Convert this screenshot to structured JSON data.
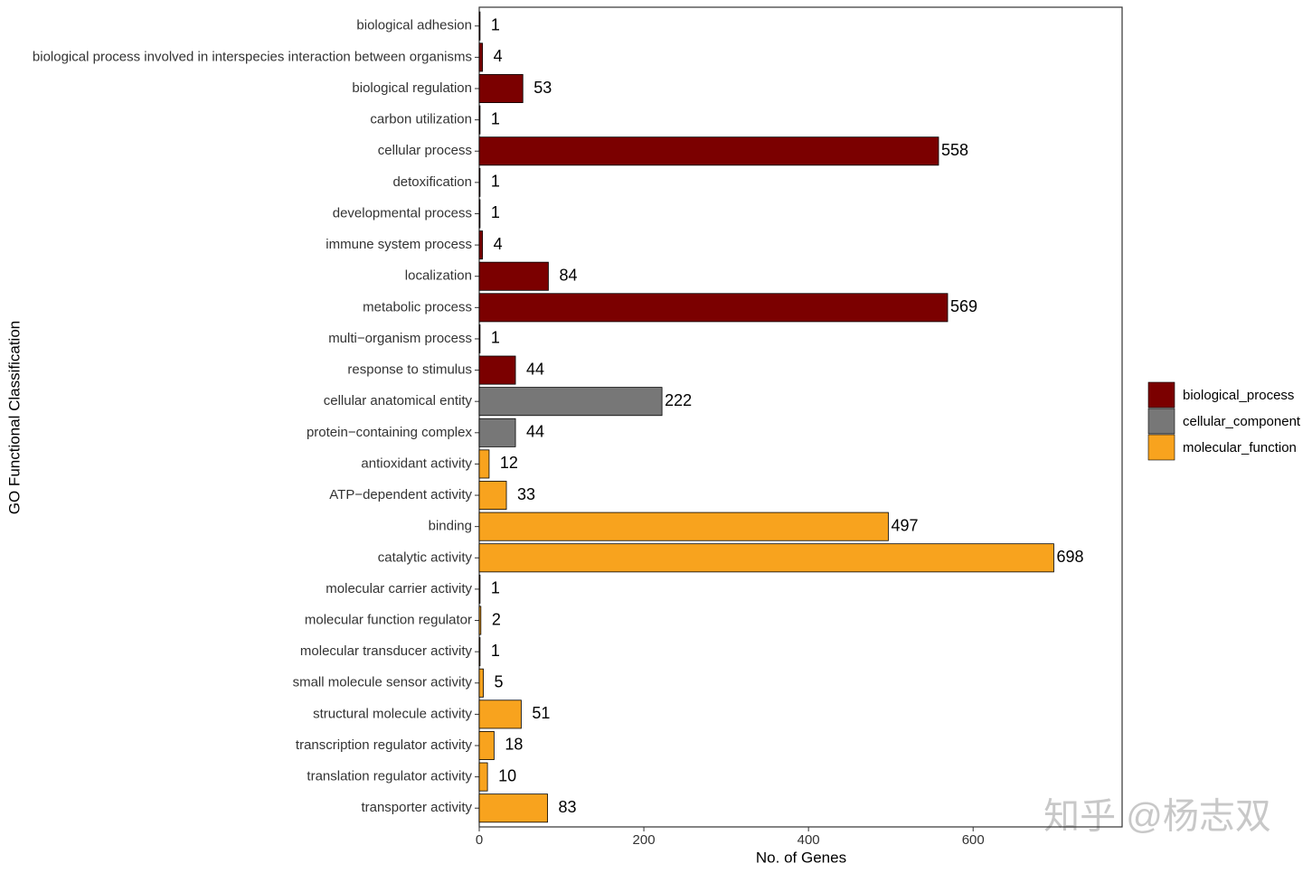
{
  "chart_data": {
    "type": "bar",
    "orientation": "horizontal",
    "x_label": "No. of Genes",
    "y_label": "GO Functional Classification",
    "categories": [
      "biological adhesion",
      "biological process involved in interspecies interaction between organisms",
      "biological regulation",
      "carbon utilization",
      "cellular process",
      "detoxification",
      "developmental process",
      "immune system process",
      "localization",
      "metabolic process",
      "multi−organism process",
      "response to stimulus",
      "cellular anatomical entity",
      "protein−containing complex",
      "antioxidant activity",
      "ATP−dependent activity",
      "binding",
      "catalytic activity",
      "molecular carrier activity",
      "molecular function regulator",
      "molecular transducer activity",
      "small molecule sensor activity",
      "structural molecule activity",
      "transcription regulator activity",
      "translation regulator activity",
      "transporter activity"
    ],
    "series": [
      {
        "name": "biological_process",
        "color": "#7b0000",
        "values": [
          1,
          4,
          53,
          1,
          558,
          1,
          1,
          4,
          84,
          569,
          1,
          44,
          null,
          null,
          null,
          null,
          null,
          null,
          null,
          null,
          null,
          null,
          null,
          null,
          null,
          null
        ]
      },
      {
        "name": "cellular_component",
        "color": "#777777",
        "values": [
          null,
          null,
          null,
          null,
          null,
          null,
          null,
          null,
          null,
          null,
          null,
          null,
          222,
          44,
          null,
          null,
          null,
          null,
          null,
          null,
          null,
          null,
          null,
          null,
          null,
          null
        ]
      },
      {
        "name": "molecular_function",
        "color": "#f8a31e",
        "values": [
          null,
          null,
          null,
          null,
          null,
          null,
          null,
          null,
          null,
          null,
          null,
          null,
          null,
          null,
          12,
          33,
          497,
          698,
          1,
          2,
          1,
          5,
          51,
          18,
          10,
          83
        ]
      }
    ],
    "xlim": [
      0,
      781
    ],
    "xticks": [
      0,
      200,
      400,
      600
    ],
    "grid": false,
    "legend": "right",
    "watermark": "知乎 @杨志双"
  }
}
